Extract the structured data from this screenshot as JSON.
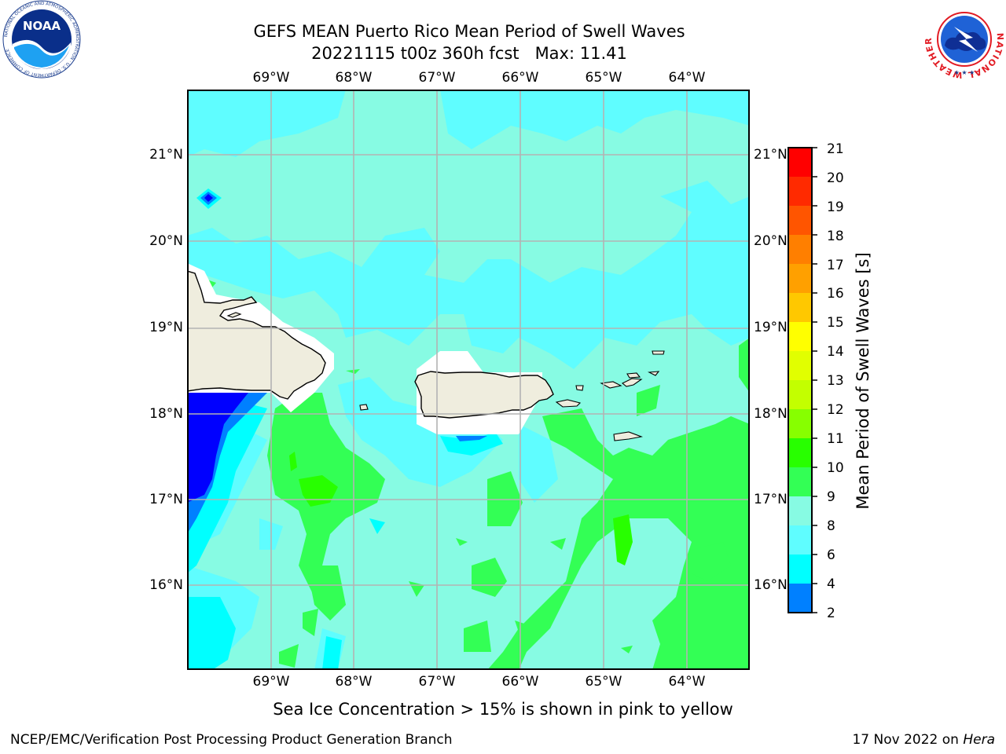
{
  "title": {
    "line1": "GEFS MEAN Puerto Rico Mean Period of Swell Waves",
    "line2": "20221115 t00z 360h fcst   Max: 11.41"
  },
  "logos": {
    "left": {
      "icon": "noaa-logo",
      "text": "NOAA",
      "ring_text": "NATIONAL OCEANIC AND ATMOSPHERIC ADMINISTRATION · U.S. DEPARTMENT OF COMMERCE"
    },
    "right": {
      "icon": "nws-logo",
      "ring_text": "NATIONAL WEATHER SERVICE"
    }
  },
  "map": {
    "lon_labels": [
      "69°W",
      "68°W",
      "67°W",
      "66°W",
      "65°W",
      "64°W"
    ],
    "lat_labels": [
      "21°N",
      "20°N",
      "19°N",
      "18°N",
      "17°N",
      "16°N"
    ],
    "colors": {
      "ocean_base": "#87fbe3",
      "land": "#efedde",
      "coast": "#000000",
      "grid": "#b3b3b3"
    }
  },
  "colorbar": {
    "label": "Mean Period of Swell Waves [s]",
    "ticks": [
      "21",
      "20",
      "19",
      "18",
      "17",
      "16",
      "15",
      "14",
      "13",
      "12",
      "11",
      "10",
      "9",
      "8",
      "6",
      "4",
      "2"
    ],
    "colors": [
      "#ff0000",
      "#ff2a00",
      "#ff5500",
      "#ff7f00",
      "#ffa000",
      "#ffc800",
      "#ffff00",
      "#e1ff00",
      "#c3ff00",
      "#87ff00",
      "#28ff00",
      "#33ff55",
      "#87fbe3",
      "#5ffdff",
      "#00ffff",
      "#0080ff",
      "#0000ff"
    ]
  },
  "subtitle": "Sea Ice Concentration > 15% is shown in pink to yellow",
  "footer": {
    "left": "NCEP/EMC/Verification Post Processing Product Generation Branch",
    "right_prefix": "17 Nov 2022 on ",
    "right_machine": "Hera"
  }
}
